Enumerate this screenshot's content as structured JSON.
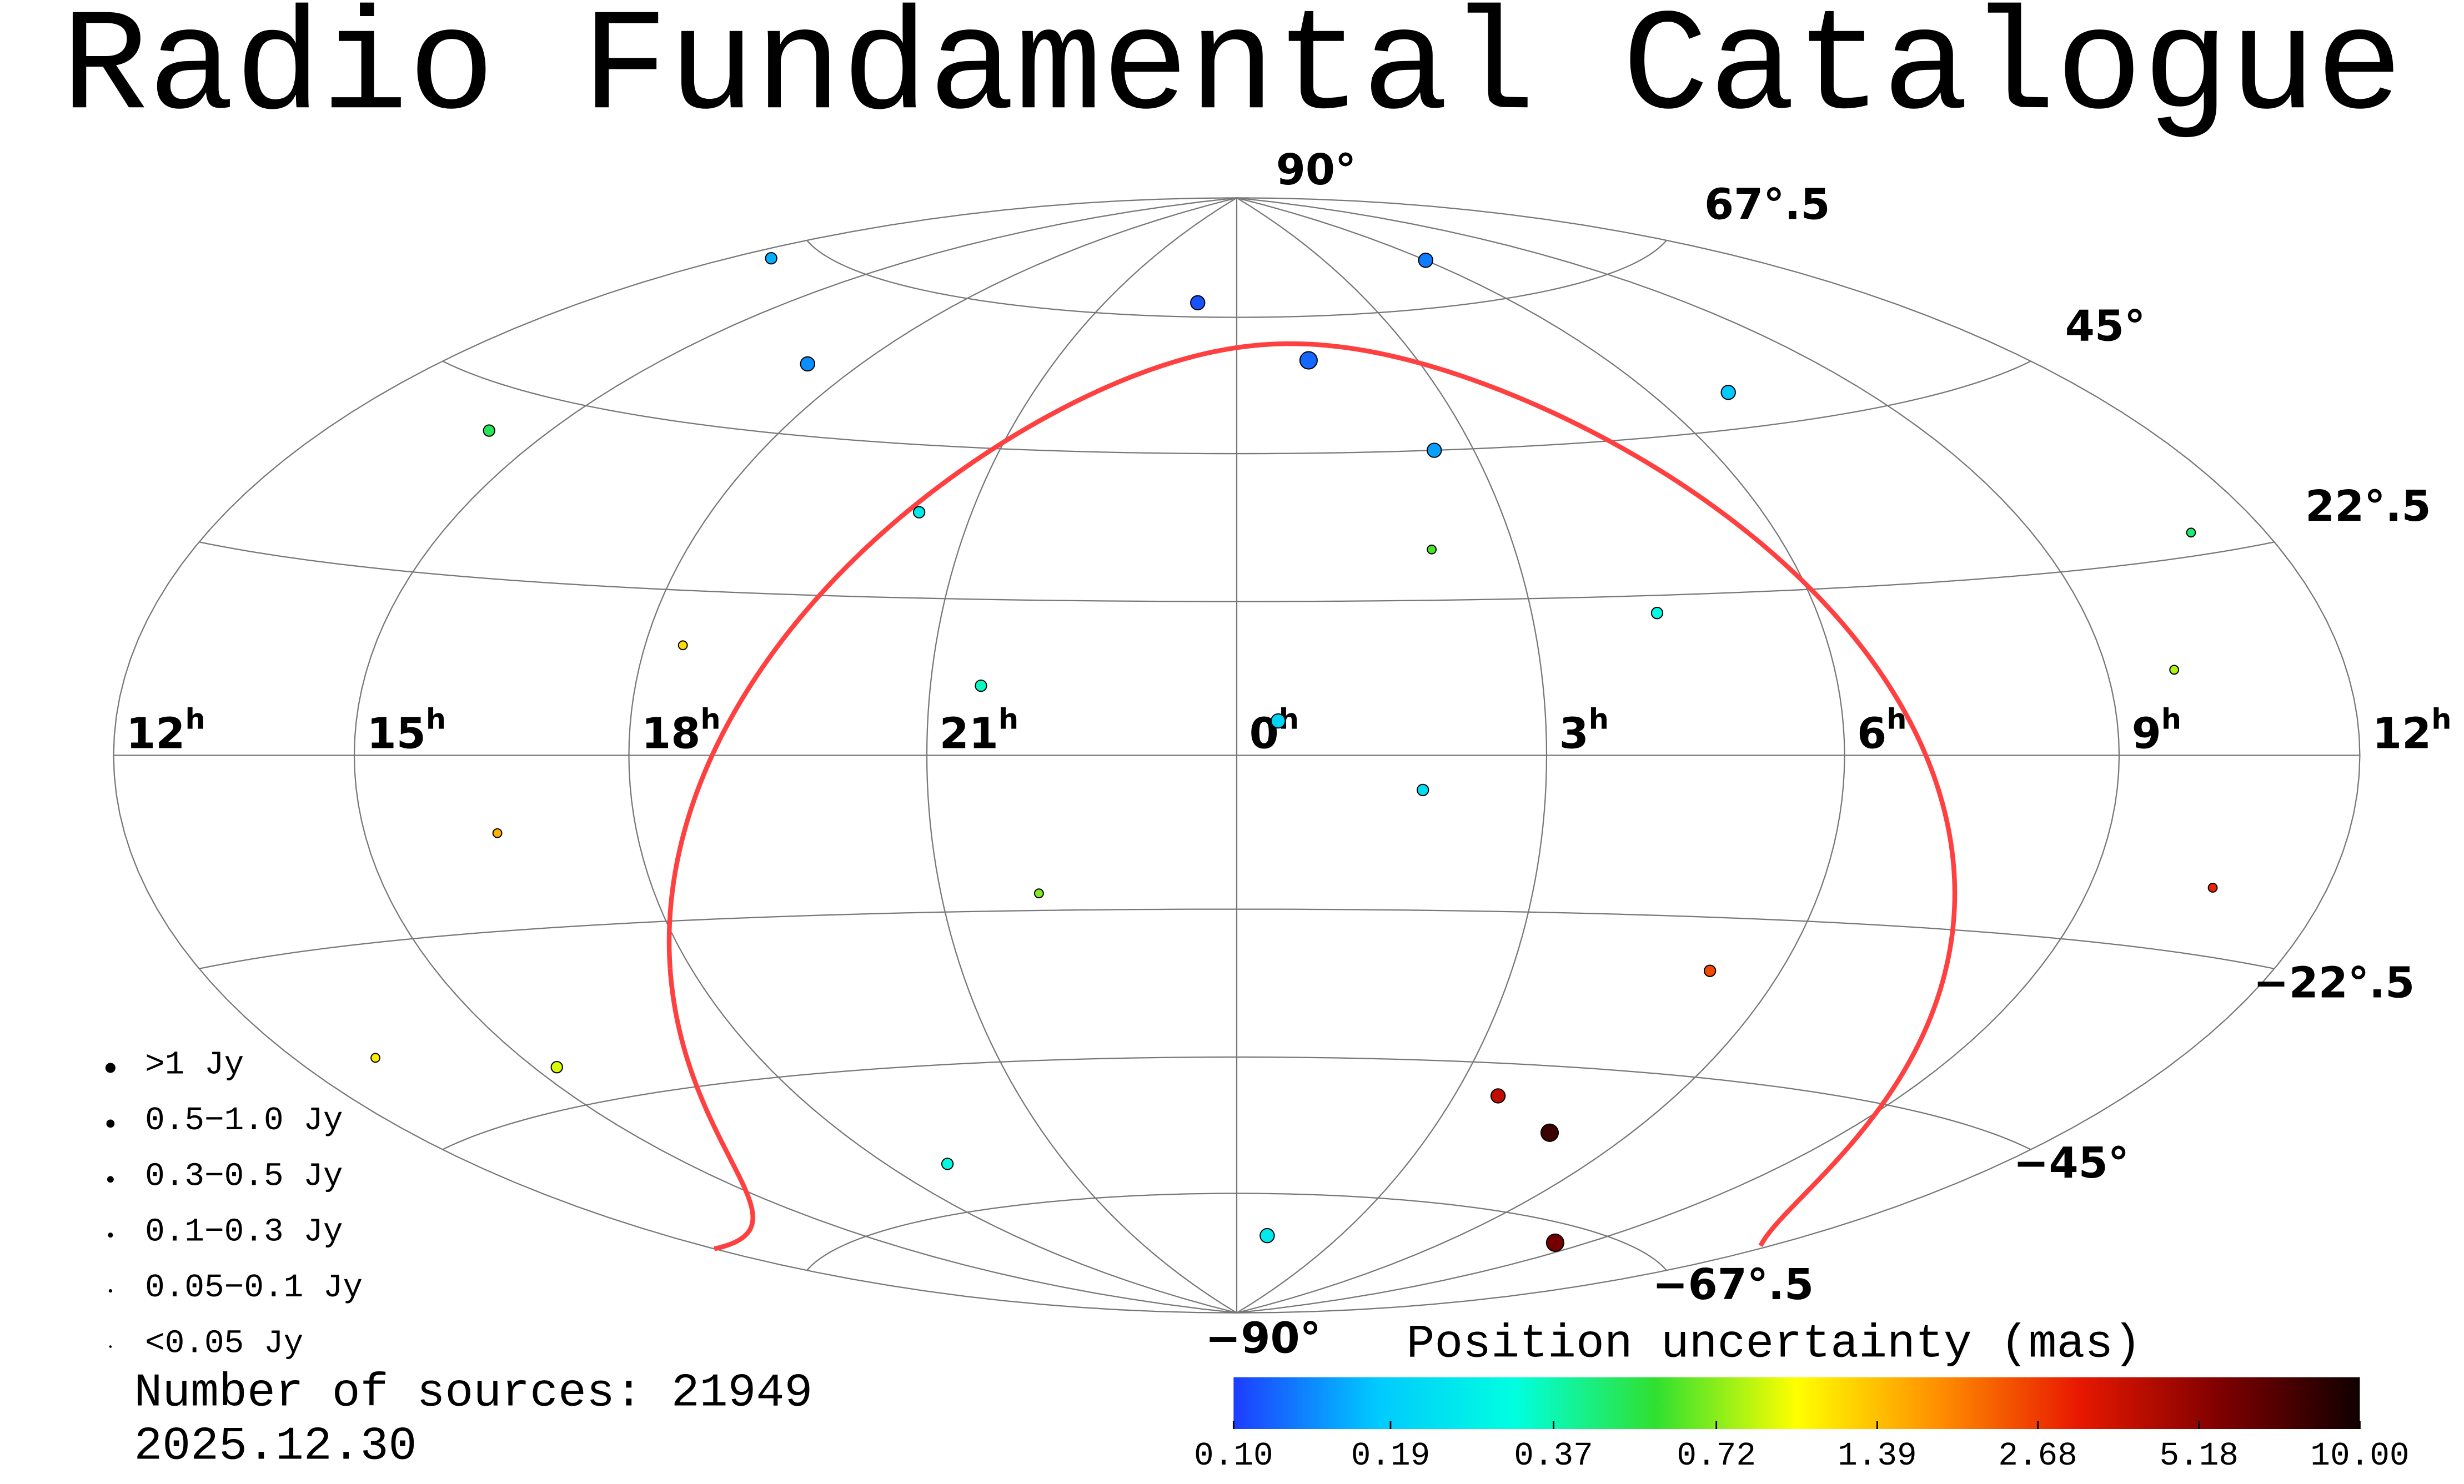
{
  "chart_data": {
    "type": "skymap",
    "title": "Radio Fundamental Catalogue",
    "ra_ticks": [
      12,
      15,
      18,
      21,
      0,
      3,
      6,
      9,
      12
    ],
    "ra_unit": "h",
    "dec_ticks": [
      {
        "value": 90,
        "label": "90°"
      },
      {
        "value": 67.5,
        "label": "67°.5"
      },
      {
        "value": 45,
        "label": "45°"
      },
      {
        "value": 22.5,
        "label": "22°.5"
      },
      {
        "value": -22.5,
        "label": "−22°.5"
      },
      {
        "value": -45,
        "label": "−45°"
      },
      {
        "value": -67.5,
        "label": "−67°.5"
      },
      {
        "value": -90,
        "label": "−90°"
      }
    ],
    "legend": [
      ">1 Jy",
      "0.5−1.0 Jy",
      "0.3−0.5 Jy",
      "0.1−0.3 Jy",
      "0.05−0.1 Jy",
      "<0.05 Jy"
    ],
    "colorbar_title": "Position uncertainty (mas)",
    "colorbar_ticks": [
      {
        "value": 0.1,
        "label": "0.10"
      },
      0.19,
      0.37,
      0.72,
      1.39,
      2.68,
      5.18,
      {
        "value": 10,
        "label": "10.00"
      }
    ],
    "colorbar_lim": [
      0.1,
      10
    ],
    "colormap": [
      "#1e3cff",
      "#00c8ff",
      "#00ffe0",
      "#30e030",
      "#ffff00",
      "#ff9000",
      "#e81800",
      "#800000",
      "#100000"
    ],
    "count_text": "Number of sources: 21949",
    "date_text": "2025.12.30",
    "sources": {
      "ra": [
        1.2,
        2.5,
        23.1,
        20.4,
        4.3,
        7.1,
        9.8,
        14.2,
        16.5,
        11.0,
        0.4,
        5.2,
        3.6,
        22.0,
        19.0,
        13.1,
        8.4,
        10.5,
        17.2,
        1.8,
        6.0,
        2.1,
        21.5,
        15.3,
        0.9,
        4.8,
        12.6,
        18.4
      ],
      "dec": [
        60,
        45,
        70,
        35,
        20,
        50,
        10,
        40,
        -10,
        25,
        5,
        -30,
        -50,
        -20,
        -60,
        -35,
        -70,
        -15,
        55,
        -5,
        75,
        30,
        10,
        -40,
        -75,
        -55,
        65,
        15
      ],
      "uncertainty": [
        0.12,
        0.15,
        0.11,
        0.25,
        0.3,
        0.18,
        0.8,
        0.5,
        1.5,
        0.45,
        0.2,
        2.5,
        4.0,
        0.7,
        0.3,
        1.1,
        6.0,
        3.0,
        0.14,
        0.22,
        0.13,
        0.6,
        0.35,
        0.9,
        0.25,
        8.0,
        0.16,
        1.2
      ],
      "flux_class": [
        0,
        1,
        1,
        2,
        2,
        1,
        3,
        2,
        3,
        3,
        1,
        2,
        1,
        3,
        2,
        3,
        0,
        3,
        1,
        2,
        1,
        3,
        2,
        2,
        1,
        0,
        2,
        3
      ]
    }
  }
}
